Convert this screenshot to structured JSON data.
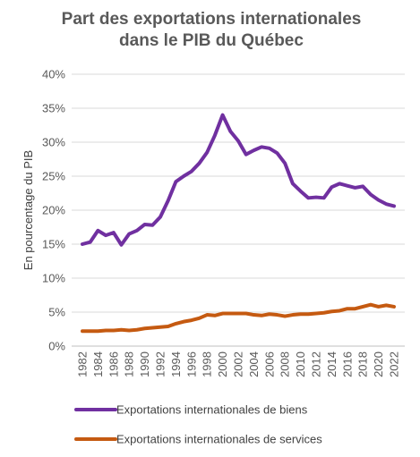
{
  "chart_data": {
    "type": "line",
    "title_lines": [
      "Part des exportations internationales",
      "dans le PIB du Québec"
    ],
    "ylabel": "En pourcentage du PIB",
    "xlabel": "",
    "ylim": [
      0,
      40
    ],
    "y_ticks": [
      0,
      5,
      10,
      15,
      20,
      25,
      30,
      35,
      40
    ],
    "y_tick_labels": [
      "0%",
      "5%",
      "10%",
      "15%",
      "20%",
      "25%",
      "30%",
      "35%",
      "40%"
    ],
    "x": [
      1982,
      1983,
      1984,
      1985,
      1986,
      1987,
      1988,
      1989,
      1990,
      1991,
      1992,
      1993,
      1994,
      1995,
      1996,
      1997,
      1998,
      1999,
      2000,
      2001,
      2002,
      2003,
      2004,
      2005,
      2006,
      2007,
      2008,
      2009,
      2010,
      2011,
      2012,
      2013,
      2014,
      2015,
      2016,
      2017,
      2018,
      2019,
      2020,
      2021,
      2022
    ],
    "x_tick_labels": [
      "1982",
      "1984",
      "1986",
      "1988",
      "1990",
      "1992",
      "1994",
      "1996",
      "1998",
      "2000",
      "2002",
      "2004",
      "2006",
      "2008",
      "2010",
      "2012",
      "2014",
      "2016",
      "2018",
      "2020",
      "2022"
    ],
    "grid": "horizontal",
    "legend_position": "bottom",
    "series": [
      {
        "name": "Exportations internationales de biens",
        "color": "#7030a0",
        "values": [
          15.0,
          15.3,
          17.0,
          16.3,
          16.7,
          14.9,
          16.5,
          17.0,
          17.9,
          17.8,
          19.0,
          21.4,
          24.2,
          25.0,
          25.7,
          26.9,
          28.5,
          31.0,
          34.0,
          31.6,
          30.2,
          28.2,
          28.8,
          29.3,
          29.1,
          28.4,
          26.9,
          23.9,
          22.8,
          21.8,
          21.9,
          21.8,
          23.4,
          23.9,
          23.6,
          23.3,
          23.5,
          22.3,
          21.5,
          20.9,
          20.6
        ]
      },
      {
        "name": "Exportations internationales de services",
        "color": "#c55a11",
        "values": [
          2.2,
          2.2,
          2.2,
          2.3,
          2.3,
          2.4,
          2.3,
          2.4,
          2.6,
          2.7,
          2.8,
          2.9,
          3.3,
          3.6,
          3.8,
          4.1,
          4.6,
          4.5,
          4.8,
          4.8,
          4.8,
          4.8,
          4.6,
          4.5,
          4.7,
          4.6,
          4.4,
          4.6,
          4.7,
          4.7,
          4.8,
          4.9,
          5.1,
          5.2,
          5.5,
          5.5,
          5.8,
          6.1,
          5.8,
          6.0,
          5.8
        ]
      }
    ]
  }
}
